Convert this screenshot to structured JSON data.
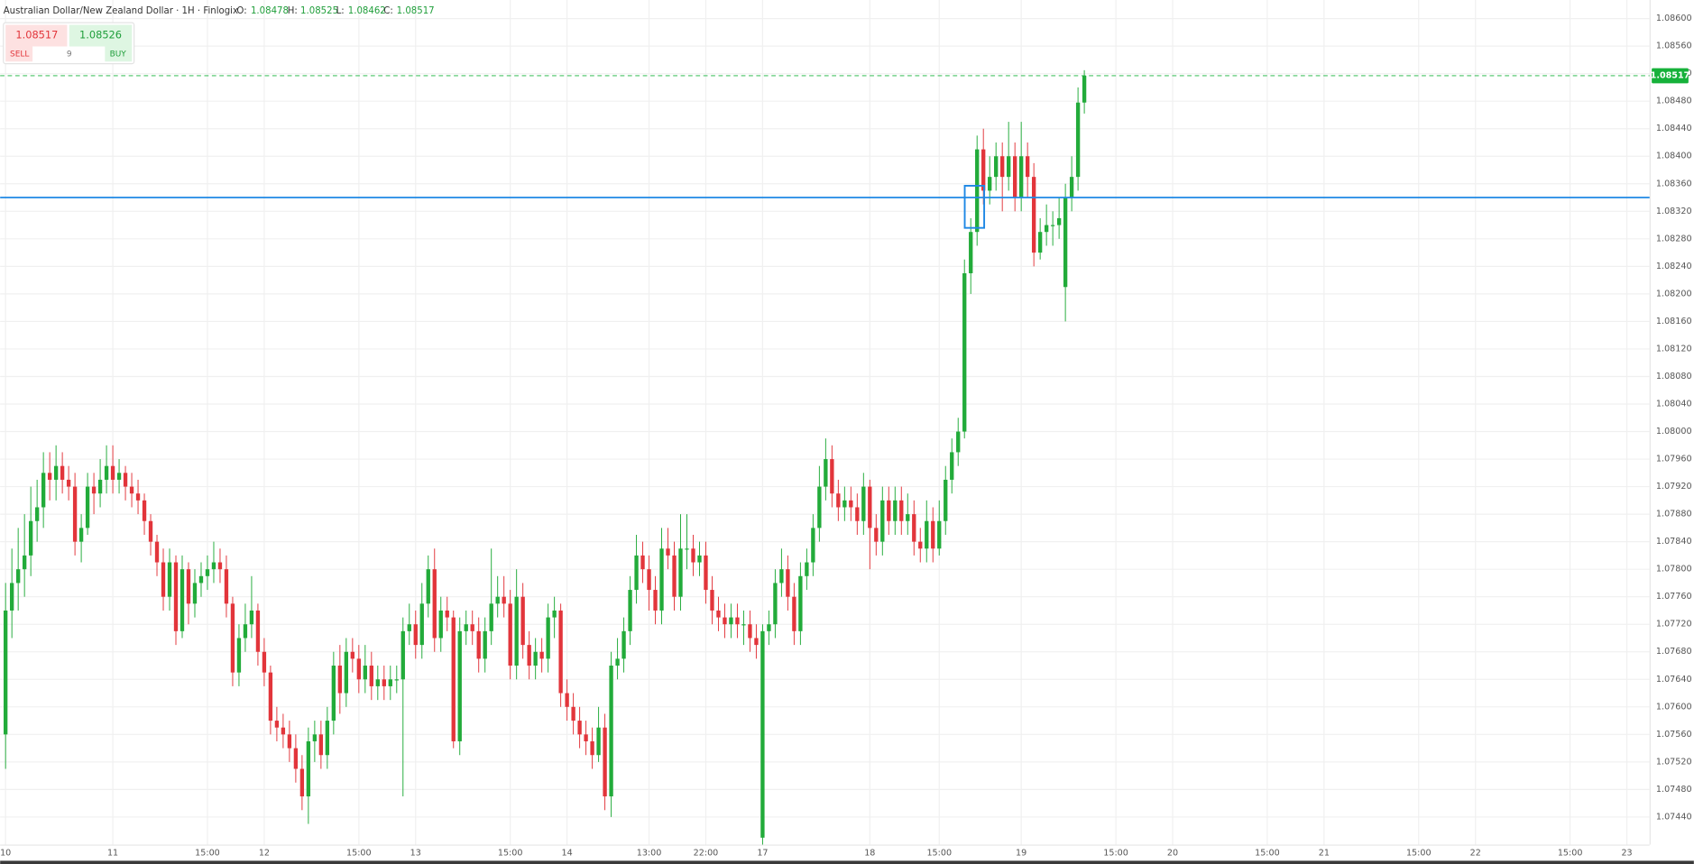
{
  "header": {
    "title": "Australian Dollar/New Zealand Dollar · 1H · Finlogix",
    "o_label": "O:",
    "h_label": "H:",
    "l_label": "L:",
    "c_label": "C:"
  },
  "trade": {
    "sell_price": 1.08517,
    "buy_price": 1.08526,
    "amount": 9,
    "sell_label": "SELL",
    "buy_label": "BUY"
  },
  "chart_data": {
    "type": "candlestick",
    "up_color": "#22ab3a",
    "down_color": "#e2353b",
    "open": [
      1.0756,
      1.0774,
      1.0778,
      1.078,
      1.0782,
      1.0787,
      1.0789,
      1.0794,
      1.0793,
      1.0795,
      1.0793,
      1.0792,
      1.0784,
      1.0786,
      1.0792,
      1.0791,
      1.0793,
      1.0795,
      1.0793,
      1.0794,
      1.0792,
      1.0791,
      1.079,
      1.0787,
      1.0784,
      1.0781,
      1.0776,
      1.0781,
      1.0771,
      1.078,
      1.0775,
      1.0778,
      1.0779,
      1.078,
      1.0781,
      1.078,
      1.0775,
      1.0765,
      1.077,
      1.0772,
      1.0774,
      1.0768,
      1.0765,
      1.0758,
      1.0757,
      1.0756,
      1.0754,
      1.0751,
      1.0747,
      1.0755,
      1.0756,
      1.0753,
      1.0758,
      1.0766,
      1.0762,
      1.0768,
      1.0767,
      1.0764,
      1.0766,
      1.0763,
      1.0764,
      1.0763,
      1.0764,
      1.0764,
      1.0771,
      1.0772,
      1.0769,
      1.0775,
      1.078,
      1.077,
      1.0774,
      1.0773,
      1.0755,
      1.0771,
      1.0772,
      1.0771,
      1.0767,
      1.0771,
      1.0775,
      1.0776,
      1.0775,
      1.0766,
      1.0776,
      1.0769,
      1.0766,
      1.0768,
      1.0767,
      1.0773,
      1.0774,
      1.0762,
      1.076,
      1.0758,
      1.0756,
      1.0755,
      1.0753,
      1.0757,
      1.0747,
      1.0766,
      1.0767,
      1.0771,
      1.0777,
      1.0782,
      1.078,
      1.0777,
      1.0774,
      1.0783,
      1.0782,
      1.0776,
      1.0783,
      1.0783,
      1.0781,
      1.0782,
      1.0777,
      1.0774,
      1.0773,
      1.0772,
      1.0773,
      1.0772,
      1.0772,
      1.077,
      1.0741,
      1.0771,
      1.0772,
      1.0778,
      1.078,
      1.0776,
      1.0771,
      1.0779,
      1.0781,
      1.0786,
      1.0792,
      1.0796,
      1.0791,
      1.0789,
      1.079,
      1.0789,
      1.0787,
      1.0792,
      1.0786,
      1.0784,
      1.079,
      1.0787,
      1.079,
      1.0787,
      1.0788,
      1.0784,
      1.0783,
      1.0787,
      1.0783,
      1.0787,
      1.0793,
      1.0797,
      1.08,
      1.0823,
      1.0829,
      1.0841,
      1.0835,
      1.0837,
      1.084,
      1.0837,
      1.084,
      1.0834,
      1.084,
      1.0837,
      1.0826,
      1.0829,
      1.083,
      1.083,
      1.0821,
      1.0834,
      1.0837,
      1.08478
    ],
    "high": [
      1.0778,
      1.0783,
      1.0786,
      1.0788,
      1.0792,
      1.0793,
      1.0797,
      1.0797,
      1.0798,
      1.0797,
      1.0795,
      1.0794,
      1.0788,
      1.0794,
      1.0794,
      1.0796,
      1.0798,
      1.0798,
      1.0796,
      1.0795,
      1.0794,
      1.0793,
      1.0791,
      1.0788,
      1.0785,
      1.0783,
      1.0783,
      1.0782,
      1.0782,
      1.0781,
      1.078,
      1.0781,
      1.0782,
      1.0784,
      1.0783,
      1.0782,
      1.0776,
      1.0772,
      1.0775,
      1.0779,
      1.0775,
      1.077,
      1.0766,
      1.076,
      1.0759,
      1.0758,
      1.0756,
      1.0753,
      1.0757,
      1.0758,
      1.0758,
      1.076,
      1.0768,
      1.0769,
      1.077,
      1.077,
      1.0769,
      1.0769,
      1.0768,
      1.0766,
      1.0766,
      1.0766,
      1.0766,
      1.0773,
      1.0775,
      1.0774,
      1.0778,
      1.0782,
      1.0783,
      1.0776,
      1.0776,
      1.0774,
      1.0773,
      1.0774,
      1.0774,
      1.0773,
      1.0773,
      1.0783,
      1.0779,
      1.0779,
      1.0777,
      1.078,
      1.0778,
      1.0771,
      1.077,
      1.077,
      1.0775,
      1.0776,
      1.0775,
      1.0764,
      1.0762,
      1.076,
      1.0758,
      1.0757,
      1.076,
      1.0759,
      1.0768,
      1.077,
      1.0773,
      1.0779,
      1.0785,
      1.0784,
      1.0782,
      1.0779,
      1.0786,
      1.0786,
      1.0784,
      1.0788,
      1.0788,
      1.0785,
      1.0784,
      1.0784,
      1.0779,
      1.0776,
      1.0775,
      1.0775,
      1.0775,
      1.0774,
      1.0774,
      1.0772,
      1.0772,
      1.0774,
      1.078,
      1.0783,
      1.0782,
      1.0778,
      1.0781,
      1.0783,
      1.0788,
      1.0795,
      1.0799,
      1.0798,
      1.0793,
      1.0792,
      1.0792,
      1.0791,
      1.0794,
      1.0793,
      1.0788,
      1.0792,
      1.0792,
      1.0792,
      1.0792,
      1.0791,
      1.079,
      1.0786,
      1.079,
      1.0789,
      1.079,
      1.0795,
      1.0799,
      1.0802,
      1.0825,
      1.0831,
      1.0843,
      1.0844,
      1.084,
      1.0842,
      1.0842,
      1.0845,
      1.0842,
      1.0845,
      1.0842,
      1.0839,
      1.0831,
      1.0833,
      1.0832,
      1.0834,
      1.0836,
      1.084,
      1.085,
      1.08525
    ],
    "low": [
      1.0751,
      1.077,
      1.0774,
      1.0776,
      1.0779,
      1.0784,
      1.0786,
      1.079,
      1.079,
      1.0791,
      1.079,
      1.0782,
      1.0781,
      1.0785,
      1.0788,
      1.0789,
      1.0791,
      1.0791,
      1.0791,
      1.079,
      1.0789,
      1.0788,
      1.0785,
      1.0782,
      1.0779,
      1.0774,
      1.0774,
      1.0769,
      1.077,
      1.0772,
      1.0773,
      1.0776,
      1.0777,
      1.0778,
      1.0778,
      1.0773,
      1.0763,
      1.0763,
      1.0768,
      1.077,
      1.0766,
      1.0763,
      1.0756,
      1.0755,
      1.0754,
      1.0752,
      1.0749,
      1.0745,
      1.0743,
      1.0752,
      1.0751,
      1.0751,
      1.0756,
      1.0759,
      1.076,
      1.0765,
      1.0762,
      1.0762,
      1.0761,
      1.0761,
      1.0761,
      1.0761,
      1.0762,
      1.0747,
      1.0769,
      1.0767,
      1.0767,
      1.0773,
      1.0768,
      1.0768,
      1.0771,
      1.0754,
      1.0753,
      1.0769,
      1.0769,
      1.0765,
      1.0765,
      1.0769,
      1.0773,
      1.0773,
      1.0764,
      1.0764,
      1.0767,
      1.0764,
      1.0764,
      1.0765,
      1.0765,
      1.077,
      1.076,
      1.0758,
      1.0756,
      1.0754,
      1.0753,
      1.0751,
      1.0752,
      1.0745,
      1.0744,
      1.0764,
      1.0765,
      1.0769,
      1.0775,
      1.0778,
      1.0774,
      1.0772,
      1.0772,
      1.078,
      1.0774,
      1.0774,
      1.078,
      1.0779,
      1.0779,
      1.0775,
      1.0772,
      1.0771,
      1.077,
      1.077,
      1.077,
      1.0769,
      1.0768,
      1.0767,
      1.074,
      1.0769,
      1.077,
      1.0776,
      1.0774,
      1.0769,
      1.0769,
      1.0777,
      1.0779,
      1.0784,
      1.079,
      1.0789,
      1.0787,
      1.0787,
      1.0787,
      1.0785,
      1.0785,
      1.078,
      1.0782,
      1.0782,
      1.0785,
      1.0785,
      1.0785,
      1.0785,
      1.0782,
      1.0781,
      1.0781,
      1.0781,
      1.0782,
      1.0785,
      1.0791,
      1.0795,
      1.0799,
      1.082,
      1.0827,
      1.0833,
      1.0833,
      1.0835,
      1.0832,
      1.0835,
      1.0832,
      1.0832,
      1.0834,
      1.0824,
      1.0825,
      1.0827,
      1.0827,
      1.0828,
      1.0816,
      1.0832,
      1.0835,
      1.08462
    ],
    "close": [
      1.0774,
      1.0778,
      1.078,
      1.0782,
      1.0787,
      1.0789,
      1.0794,
      1.0793,
      1.0795,
      1.0793,
      1.0792,
      1.0784,
      1.0786,
      1.0792,
      1.0791,
      1.0793,
      1.0795,
      1.0793,
      1.0794,
      1.0792,
      1.0791,
      1.079,
      1.0787,
      1.0784,
      1.0781,
      1.0776,
      1.0781,
      1.0771,
      1.078,
      1.0775,
      1.0778,
      1.0779,
      1.078,
      1.0781,
      1.078,
      1.0775,
      1.0765,
      1.077,
      1.0772,
      1.0774,
      1.0768,
      1.0765,
      1.0758,
      1.0757,
      1.0756,
      1.0754,
      1.0751,
      1.0747,
      1.0755,
      1.0756,
      1.0753,
      1.0758,
      1.0766,
      1.0762,
      1.0768,
      1.0767,
      1.0764,
      1.0766,
      1.0763,
      1.0764,
      1.0763,
      1.0764,
      1.0764,
      1.0771,
      1.0772,
      1.0769,
      1.0775,
      1.078,
      1.077,
      1.0774,
      1.0773,
      1.0755,
      1.0771,
      1.0772,
      1.0771,
      1.0767,
      1.0771,
      1.0775,
      1.0776,
      1.0775,
      1.0766,
      1.0776,
      1.0769,
      1.0766,
      1.0768,
      1.0767,
      1.0773,
      1.0774,
      1.0762,
      1.076,
      1.0758,
      1.0756,
      1.0755,
      1.0753,
      1.0757,
      1.0747,
      1.0766,
      1.0767,
      1.0771,
      1.0777,
      1.0782,
      1.078,
      1.0777,
      1.0774,
      1.0783,
      1.0782,
      1.0776,
      1.0783,
      1.0783,
      1.0781,
      1.0782,
      1.0777,
      1.0774,
      1.0773,
      1.0772,
      1.0773,
      1.0772,
      1.0772,
      1.077,
      1.0769,
      1.0771,
      1.0772,
      1.0778,
      1.078,
      1.0776,
      1.0771,
      1.0779,
      1.0781,
      1.0786,
      1.0792,
      1.0796,
      1.0791,
      1.0789,
      1.079,
      1.0789,
      1.0787,
      1.0792,
      1.0786,
      1.0784,
      1.079,
      1.0787,
      1.079,
      1.0787,
      1.0788,
      1.0784,
      1.0783,
      1.0787,
      1.0783,
      1.0787,
      1.0793,
      1.0797,
      1.08,
      1.0823,
      1.0829,
      1.0841,
      1.0835,
      1.0837,
      1.084,
      1.0837,
      1.084,
      1.0834,
      1.084,
      1.0837,
      1.0826,
      1.0829,
      1.083,
      1.083,
      1.0831,
      1.0834,
      1.0837,
      1.08478,
      1.08517
    ],
    "xlim": [
      -0.86,
      260.6
    ],
    "xticks": [
      {
        "value": 0,
        "label": "10"
      },
      {
        "value": 17,
        "label": "11"
      },
      {
        "value": 32,
        "label": "15:00"
      },
      {
        "value": 41,
        "label": "12"
      },
      {
        "value": 56,
        "label": "15:00"
      },
      {
        "value": 65,
        "label": "13"
      },
      {
        "value": 80,
        "label": "15:00"
      },
      {
        "value": 89,
        "label": "14"
      },
      {
        "value": 102,
        "label": "13:00"
      },
      {
        "value": 111,
        "label": "22:00"
      },
      {
        "value": 120,
        "label": "17"
      },
      {
        "value": 137,
        "label": "18"
      },
      {
        "value": 148,
        "label": "15:00"
      },
      {
        "value": 161,
        "label": "19"
      },
      {
        "value": 176,
        "label": "15:00"
      },
      {
        "value": 185,
        "label": "20"
      },
      {
        "value": 200,
        "label": "15:00"
      },
      {
        "value": 209,
        "label": "21"
      },
      {
        "value": 224,
        "label": "15:00"
      },
      {
        "value": 233,
        "label": "22"
      },
      {
        "value": 248,
        "label": "15:00"
      },
      {
        "value": 257,
        "label": "23"
      }
    ],
    "ylim": [
      1.074,
      1.08627
    ],
    "yticks": [
      {
        "value": 1.0744,
        "label": "1.07440"
      },
      {
        "value": 1.0748,
        "label": "1.07480"
      },
      {
        "value": 1.0752,
        "label": "1.07520"
      },
      {
        "value": 1.0756,
        "label": "1.07560"
      },
      {
        "value": 1.076,
        "label": "1.07600"
      },
      {
        "value": 1.0764,
        "label": "1.07640"
      },
      {
        "value": 1.0768,
        "label": "1.07680"
      },
      {
        "value": 1.0772,
        "label": "1.07720"
      },
      {
        "value": 1.0776,
        "label": "1.07760"
      },
      {
        "value": 1.078,
        "label": "1.07800"
      },
      {
        "value": 1.0784,
        "label": "1.07840"
      },
      {
        "value": 1.0788,
        "label": "1.07880"
      },
      {
        "value": 1.0792,
        "label": "1.07920"
      },
      {
        "value": 1.0796,
        "label": "1.07960"
      },
      {
        "value": 1.08,
        "label": "1.08000"
      },
      {
        "value": 1.0804,
        "label": "1.08040"
      },
      {
        "value": 1.0808,
        "label": "1.08080"
      },
      {
        "value": 1.0812,
        "label": "1.08120"
      },
      {
        "value": 1.0816,
        "label": "1.08160"
      },
      {
        "value": 1.082,
        "label": "1.08200"
      },
      {
        "value": 1.0824,
        "label": "1.08240"
      },
      {
        "value": 1.0828,
        "label": "1.08280"
      },
      {
        "value": 1.0832,
        "label": "1.08320"
      },
      {
        "value": 1.0836,
        "label": "1.08360"
      },
      {
        "value": 1.084,
        "label": "1.08400"
      },
      {
        "value": 1.0844,
        "label": "1.08440"
      },
      {
        "value": 1.0848,
        "label": "1.08480"
      },
      {
        "value": 1.0852,
        "label": "1.08520"
      },
      {
        "value": 1.0856,
        "label": "1.08560"
      },
      {
        "value": 1.086,
        "label": "1.08600"
      }
    ],
    "grid": true,
    "hline": 1.0834,
    "hline_color": "#1e88e5",
    "price_color": "#16b13a"
  }
}
